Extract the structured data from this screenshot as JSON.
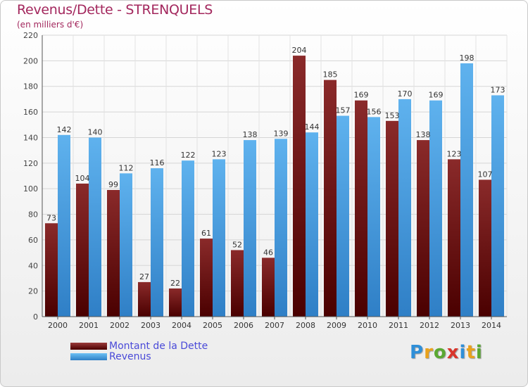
{
  "header": {
    "title": "Revenus/Dette - STRENQUELS",
    "subtitle": "(en milliers d'€)"
  },
  "legend": {
    "items": [
      {
        "label": "Montant de la Dette",
        "color": "#7a1a1a"
      },
      {
        "label": "Revenus",
        "color": "#4fa3e3"
      }
    ]
  },
  "logo": {
    "text": "Proxiti",
    "letters": [
      {
        "ch": "P",
        "color": "#2f8fd8"
      },
      {
        "ch": "r",
        "color": "#e9a21c"
      },
      {
        "ch": "o",
        "color": "#5aa832"
      },
      {
        "ch": "x",
        "color": "#d8352b"
      },
      {
        "ch": "i",
        "color": "#2f8fd8"
      },
      {
        "ch": "t",
        "color": "#e9a21c"
      },
      {
        "ch": "i",
        "color": "#5aa832"
      }
    ]
  },
  "chart_data": {
    "type": "bar",
    "title": "Revenus/Dette - STRENQUELS",
    "subtitle": "(en milliers d'€)",
    "categories": [
      "2000",
      "2001",
      "2002",
      "2003",
      "2004",
      "2005",
      "2006",
      "2007",
      "2008",
      "2009",
      "2010",
      "2011",
      "2012",
      "2013",
      "2014"
    ],
    "series": [
      {
        "name": "Montant de la Dette",
        "color": "#7a1a1a",
        "values": [
          73,
          104,
          99,
          27,
          22,
          61,
          52,
          46,
          204,
          185,
          169,
          153,
          138,
          123,
          107
        ]
      },
      {
        "name": "Revenus",
        "color": "#4fa3e3",
        "values": [
          142,
          140,
          112,
          116,
          122,
          123,
          138,
          139,
          144,
          157,
          156,
          170,
          169,
          198,
          173
        ]
      }
    ],
    "ylim": [
      0,
      220
    ],
    "yticks": [
      0,
      20,
      40,
      60,
      80,
      100,
      120,
      140,
      160,
      180,
      200,
      220
    ],
    "grid": true,
    "legend_position": "bottom-left"
  }
}
